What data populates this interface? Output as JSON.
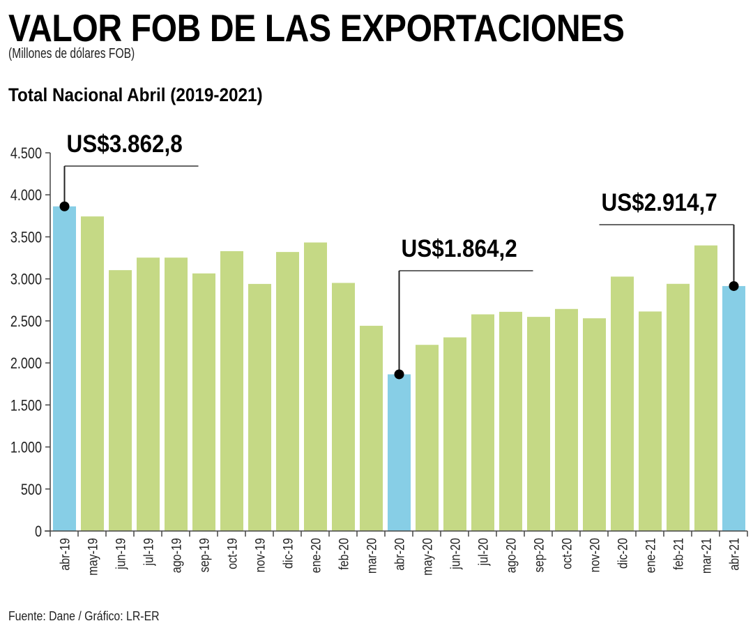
{
  "header": {
    "title": "VALOR FOB DE LAS EXPORTACIONES",
    "subtitle": "(Millones de dólares FOB)",
    "section_title": "Total Nacional Abril (2019-2021)"
  },
  "footer": {
    "source": "Fuente: Dane / Gráfico: LR-ER"
  },
  "colors": {
    "highlight_bar": "#87CEE6",
    "regular_bar": "#C5D985",
    "axis": "#444444",
    "callout_line": "#666666",
    "marker": "#000000"
  },
  "chart_data": {
    "type": "bar",
    "title": "VALOR FOB DE LAS EXPORTACIONES",
    "subtitle": "Total Nacional Abril (2019-2021)",
    "xlabel": "",
    "ylabel": "Millones de dólares FOB",
    "ylim": [
      0,
      4500
    ],
    "yticks": [
      0,
      500,
      1000,
      1500,
      2000,
      2500,
      3000,
      3500,
      4000,
      4500
    ],
    "ytick_labels": [
      "0",
      "500",
      "1.000",
      "1.500",
      "2.000",
      "2.500",
      "3.000",
      "3.500",
      "4.000",
      "4.500"
    ],
    "grid": false,
    "legend": "none",
    "categories": [
      "abr-19",
      "may-19",
      "jun-19",
      "jul-19",
      "ago-19",
      "sep-19",
      "oct-19",
      "nov-19",
      "dic-19",
      "ene-20",
      "feb-20",
      "mar-20",
      "abr-20",
      "may-20",
      "jun-20",
      "jul-20",
      "ago-20",
      "sep-20",
      "oct-20",
      "nov-20",
      "dic-20",
      "ene-21",
      "feb-21",
      "mar-21",
      "abr-21"
    ],
    "values": [
      3862.8,
      3743,
      3104,
      3253,
      3253,
      3065,
      3330,
      2940,
      3320,
      3433,
      2952,
      2442,
      1864.2,
      2215,
      2304,
      2578,
      2608,
      2548,
      2642,
      2531,
      3027,
      2612,
      2941,
      3398,
      2914.7
    ],
    "highlighted": [
      "abr-19",
      "abr-20",
      "abr-21"
    ],
    "annotations": [
      {
        "category": "abr-19",
        "text": "US$3.862,8",
        "side": "right"
      },
      {
        "category": "abr-20",
        "text": "US$1.864,2",
        "side": "right"
      },
      {
        "category": "abr-21",
        "text": "US$2.914,7",
        "side": "left"
      }
    ]
  }
}
